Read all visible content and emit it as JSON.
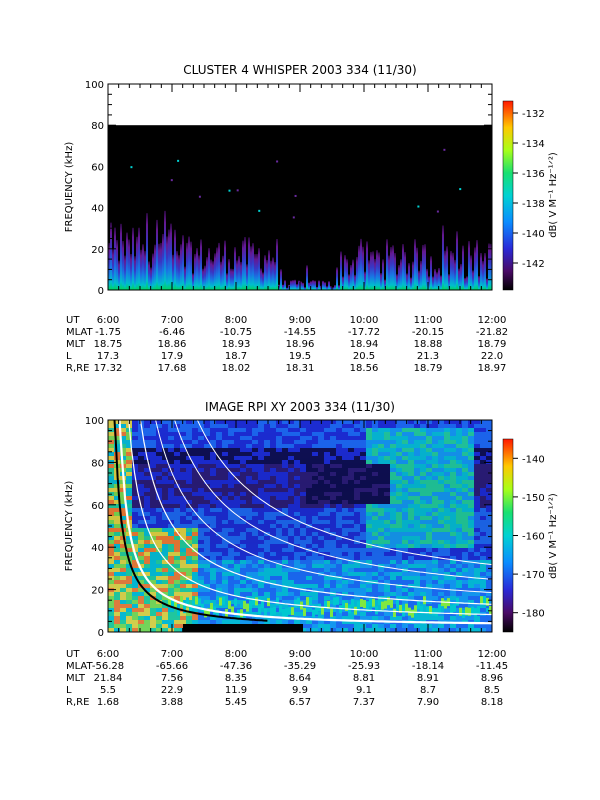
{
  "chart_data": [
    {
      "type": "heatmap",
      "title": "CLUSTER 4 WHISPER 2003 334 (11/30)",
      "ylabel": "FREQUENCY (kHz)",
      "ylim": [
        0,
        100
      ],
      "yticks": [
        "0",
        "20",
        "40",
        "60",
        "80",
        "100"
      ],
      "data_top_khz": 80,
      "x": [
        "6:00",
        "7:00",
        "8:00",
        "9:00",
        "10:00",
        "11:00",
        "12:00"
      ],
      "colorbar": {
        "label": "dB( V M⁻¹ Hz⁻¹ᐟ²)",
        "range": [
          -143.8,
          -131.2
        ],
        "ticks": [
          "-132",
          "-134",
          "-136",
          "-138",
          "-140",
          "-142"
        ],
        "tick_values": [
          -132,
          -134,
          -136,
          -138,
          -140,
          -142
        ]
      },
      "ephemeris": [
        {
          "label": "UT",
          "values": [
            "6:00",
            "7:00",
            "8:00",
            "9:00",
            "10:00",
            "11:00",
            "12:00"
          ]
        },
        {
          "label": "MLAT",
          "values": [
            "-1.75",
            "-6.46",
            "-10.75",
            "-14.55",
            "-17.72",
            "-20.15",
            "-21.82"
          ]
        },
        {
          "label": "MLT",
          "values": [
            "18.75",
            "18.86",
            "18.93",
            "18.96",
            "18.94",
            "18.88",
            "18.79"
          ]
        },
        {
          "label": "L",
          "values": [
            "17.3",
            "17.9",
            "18.7",
            "19.5",
            "20.5",
            "21.3",
            "22.0"
          ]
        },
        {
          "label": "R,RE",
          "values": [
            "17.32",
            "17.68",
            "18.02",
            "18.31",
            "18.56",
            "18.79",
            "18.97"
          ]
        }
      ]
    },
    {
      "type": "heatmap",
      "title": "IMAGE RPI XY 2003 334 (11/30)",
      "ylabel": "FREQUENCY (kHz)",
      "ylim": [
        0,
        100
      ],
      "yticks": [
        "0",
        "20",
        "40",
        "60",
        "80",
        "100"
      ],
      "x": [
        "6:00",
        "7:00",
        "8:00",
        "9:00",
        "10:00",
        "11:00",
        "12:00"
      ],
      "colorbar": {
        "label": "dB( V M⁻¹ Hz⁻¹ᐟ²)",
        "range": [
          -185,
          -135
        ],
        "ticks": [
          "-140",
          "-150",
          "-160",
          "-170",
          "-180"
        ],
        "tick_values": [
          -140,
          -150,
          -160,
          -170,
          -180
        ]
      },
      "ephemeris": [
        {
          "label": "UT",
          "values": [
            "6:00",
            "7:00",
            "8:00",
            "9:00",
            "10:00",
            "11:00",
            "12:00"
          ]
        },
        {
          "label": "MLAT",
          "values": [
            "-56.28",
            "-65.66",
            "-47.36",
            "-35.29",
            "-25.93",
            "-18.14",
            "-11.45"
          ]
        },
        {
          "label": "MLT",
          "values": [
            "21.84",
            "7.56",
            "8.35",
            "8.64",
            "8.81",
            "8.91",
            "8.96"
          ]
        },
        {
          "label": "L",
          "values": [
            "5.5",
            "22.9",
            "11.9",
            "9.9",
            "9.1",
            "8.7",
            "8.5"
          ]
        },
        {
          "label": "R,RE",
          "values": [
            "1.68",
            "3.88",
            "5.45",
            "6.57",
            "7.37",
            "7.90",
            "8.18"
          ]
        }
      ]
    }
  ]
}
